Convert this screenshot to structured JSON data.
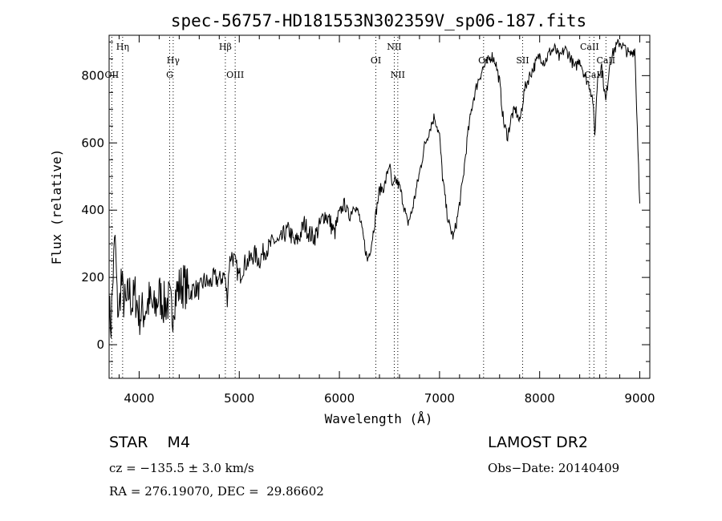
{
  "chart_data": {
    "type": "line",
    "title": "spec-56757-HD181553N302359V_sp06-187.fits",
    "xlabel": "Wavelength (Å)",
    "ylabel": "Flux (relative)",
    "xlim": [
      3700,
      9100
    ],
    "ylim": [
      -100,
      920
    ],
    "x_ticks": [
      4000,
      5000,
      6000,
      7000,
      8000,
      9000
    ],
    "y_ticks": [
      0,
      200,
      400,
      600,
      800
    ],
    "series": [
      {
        "values": [
          [
            3700,
            100
          ],
          [
            3720,
            60
          ],
          [
            3740,
            210
          ],
          [
            3760,
            320
          ],
          [
            3780,
            130
          ],
          [
            3800,
            90
          ],
          [
            3820,
            200
          ],
          [
            3840,
            140
          ],
          [
            3870,
            110
          ],
          [
            3900,
            160
          ],
          [
            3930,
            120
          ],
          [
            3960,
            150
          ],
          [
            4000,
            90
          ],
          [
            4050,
            100
          ],
          [
            4100,
            130
          ],
          [
            4150,
            100
          ],
          [
            4200,
            150
          ],
          [
            4250,
            120
          ],
          [
            4300,
            130
          ],
          [
            4330,
            90
          ],
          [
            4350,
            140
          ],
          [
            4400,
            170
          ],
          [
            4450,
            180
          ],
          [
            4500,
            150
          ],
          [
            4550,
            170
          ],
          [
            4600,
            160
          ],
          [
            4650,
            190
          ],
          [
            4700,
            180
          ],
          [
            4750,
            200
          ],
          [
            4800,
            190
          ],
          [
            4850,
            210
          ],
          [
            4880,
            140
          ],
          [
            4900,
            240
          ],
          [
            4920,
            270
          ],
          [
            4950,
            250
          ],
          [
            5000,
            200
          ],
          [
            5050,
            240
          ],
          [
            5100,
            250
          ],
          [
            5150,
            270
          ],
          [
            5200,
            250
          ],
          [
            5250,
            280
          ],
          [
            5300,
            290
          ],
          [
            5350,
            310
          ],
          [
            5400,
            300
          ],
          [
            5450,
            330
          ],
          [
            5500,
            340
          ],
          [
            5550,
            300
          ],
          [
            5600,
            320
          ],
          [
            5650,
            360
          ],
          [
            5700,
            330
          ],
          [
            5750,
            320
          ],
          [
            5800,
            350
          ],
          [
            5850,
            390
          ],
          [
            5900,
            370
          ],
          [
            5950,
            330
          ],
          [
            6000,
            390
          ],
          [
            6050,
            420
          ],
          [
            6100,
            380
          ],
          [
            6150,
            420
          ],
          [
            6200,
            380
          ],
          [
            6250,
            300
          ],
          [
            6280,
            250
          ],
          [
            6320,
            300
          ],
          [
            6360,
            380
          ],
          [
            6400,
            460
          ],
          [
            6450,
            470
          ],
          [
            6500,
            540
          ],
          [
            6530,
            460
          ],
          [
            6560,
            490
          ],
          [
            6600,
            470
          ],
          [
            6640,
            420
          ],
          [
            6680,
            360
          ],
          [
            6720,
            390
          ],
          [
            6760,
            450
          ],
          [
            6800,
            510
          ],
          [
            6850,
            590
          ],
          [
            6900,
            640
          ],
          [
            6950,
            680
          ],
          [
            7000,
            620
          ],
          [
            7030,
            500
          ],
          [
            7070,
            400
          ],
          [
            7100,
            350
          ],
          [
            7140,
            320
          ],
          [
            7180,
            380
          ],
          [
            7230,
            480
          ],
          [
            7280,
            620
          ],
          [
            7330,
            720
          ],
          [
            7380,
            780
          ],
          [
            7430,
            820
          ],
          [
            7480,
            840
          ],
          [
            7520,
            860
          ],
          [
            7560,
            840
          ],
          [
            7600,
            780
          ],
          [
            7640,
            660
          ],
          [
            7680,
            620
          ],
          [
            7720,
            680
          ],
          [
            7760,
            700
          ],
          [
            7800,
            660
          ],
          [
            7850,
            760
          ],
          [
            7900,
            800
          ],
          [
            7950,
            830
          ],
          [
            8000,
            860
          ],
          [
            8050,
            840
          ],
          [
            8100,
            870
          ],
          [
            8150,
            880
          ],
          [
            8200,
            850
          ],
          [
            8250,
            880
          ],
          [
            8300,
            860
          ],
          [
            8350,
            820
          ],
          [
            8400,
            850
          ],
          [
            8450,
            800
          ],
          [
            8500,
            770
          ],
          [
            8530,
            730
          ],
          [
            8550,
            620
          ],
          [
            8580,
            800
          ],
          [
            8620,
            830
          ],
          [
            8660,
            720
          ],
          [
            8700,
            840
          ],
          [
            8750,
            880
          ],
          [
            8800,
            900
          ],
          [
            8850,
            880
          ],
          [
            8900,
            860
          ],
          [
            8950,
            880
          ],
          [
            9000,
            420
          ]
        ]
      }
    ],
    "lines": [
      {
        "label": "Hη",
        "wavelength": 3835,
        "row": 1
      },
      {
        "label": "OII",
        "wavelength": 3727,
        "row": 3
      },
      {
        "label": "Hγ",
        "wavelength": 4340,
        "row": 2
      },
      {
        "label": "G",
        "wavelength": 4305,
        "row": 3
      },
      {
        "label": "Hβ",
        "wavelength": 4861,
        "row": 1
      },
      {
        "label": "OIII",
        "wavelength": 4959,
        "row": 3
      },
      {
        "label": "OI",
        "wavelength": 6364,
        "row": 2
      },
      {
        "label": "NII",
        "wavelength": 6548,
        "row": 1
      },
      {
        "label": "NII",
        "wavelength": 6583,
        "row": 3
      },
      {
        "label": "OI",
        "wavelength": 7440,
        "row": 2
      },
      {
        "label": "SII",
        "wavelength": 7830,
        "row": 2
      },
      {
        "label": "CaII",
        "wavelength": 8498,
        "row": 1
      },
      {
        "label": "CaII",
        "wavelength": 8542,
        "row": 3
      },
      {
        "label": "CaII",
        "wavelength": 8662,
        "row": 2
      }
    ]
  },
  "info": {
    "object_class": "STAR    M4",
    "survey": "LAMOST DR2",
    "redshift": "cz = −135.5 ± 3.0 km/s",
    "obs_date": "Obs−Date: 20140409",
    "coords": "RA = 276.19070, DEC =  29.86602"
  }
}
